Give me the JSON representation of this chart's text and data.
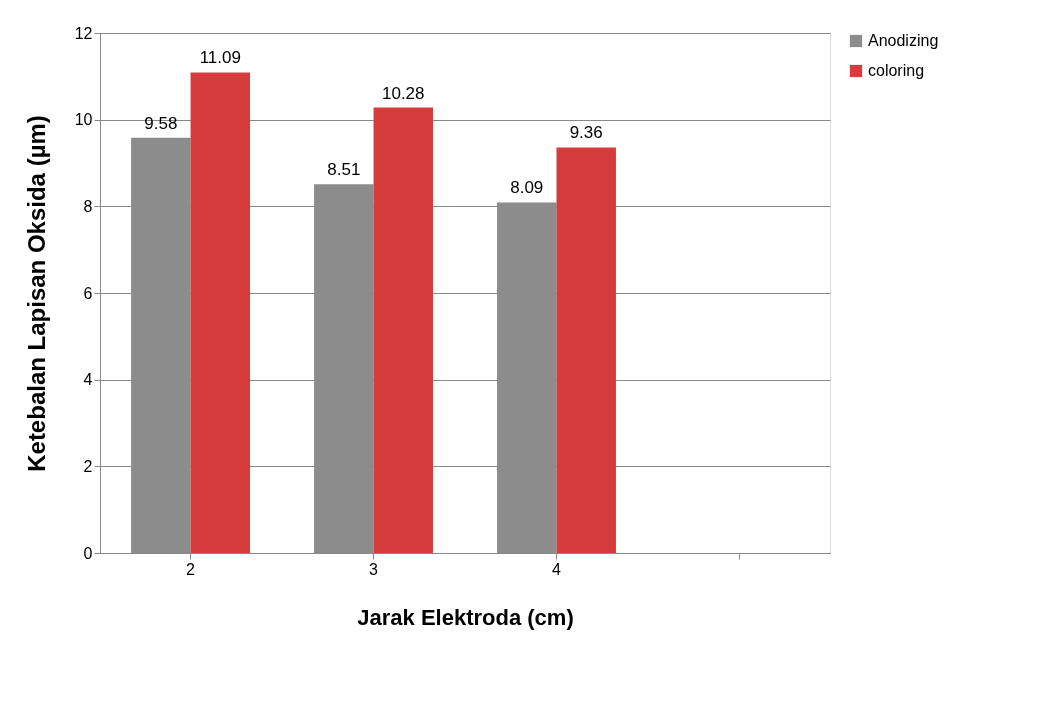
{
  "chart_data": {
    "type": "bar",
    "xlabel": "Jarak Elektroda (cm)",
    "ylabel": "Ketebalan Lapisan Oksida   (µm)",
    "categories": [
      "2",
      "3",
      "4",
      null
    ],
    "series": [
      {
        "name": "Anodizing",
        "color": "#8c8c8c",
        "values": [
          9.58,
          8.51,
          8.09,
          null
        ]
      },
      {
        "name": "coloring",
        "color": "#d63c3c",
        "values": [
          11.09,
          10.28,
          9.36,
          null
        ]
      }
    ],
    "ylim": [
      0,
      12
    ],
    "yticks": [
      0,
      2,
      4,
      6,
      8,
      10,
      12
    ],
    "grid": "y",
    "legend": "right",
    "data_labels": true
  }
}
